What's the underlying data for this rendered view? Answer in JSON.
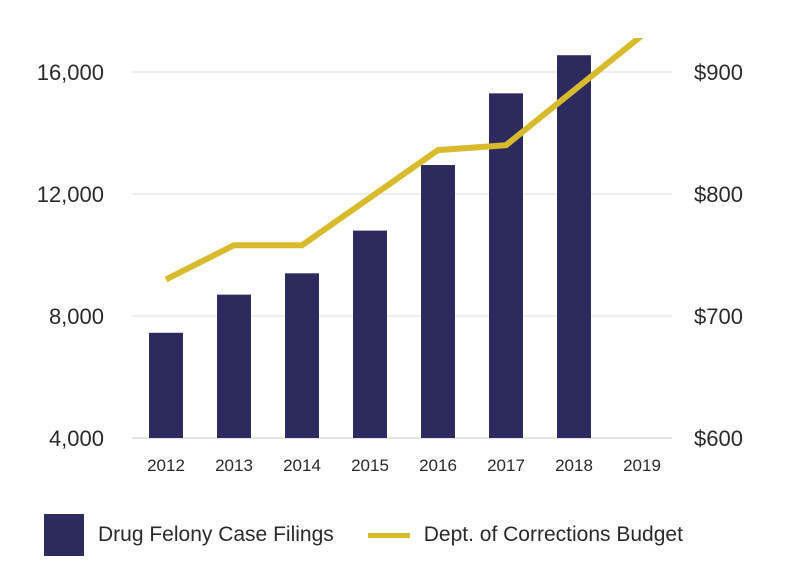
{
  "chart_data": {
    "type": "bar+line",
    "title": "",
    "categories": [
      "2012",
      "2013",
      "2014",
      "2015",
      "2016",
      "2017",
      "2018",
      "2019"
    ],
    "series": [
      {
        "name": "Drug Felony Case Filings",
        "type": "bar",
        "axis": "left",
        "color": "#2d2a5d",
        "values": [
          7450,
          8700,
          9400,
          10800,
          12950,
          15300,
          16550,
          null
        ]
      },
      {
        "name": "Dept. of Corrections Budget",
        "type": "line",
        "axis": "right",
        "color": "#d8bb2c",
        "values": [
          730,
          758,
          758,
          797,
          836,
          840,
          885,
          930
        ]
      }
    ],
    "y_left": {
      "ylim": [
        4000,
        17500
      ],
      "ticks": [
        4000,
        8000,
        12000,
        16000
      ],
      "tick_labels": [
        "4,000",
        "8,000",
        "12,000",
        "16,000"
      ]
    },
    "y_right": {
      "ylim": [
        600,
        930
      ],
      "ticks": [
        600,
        700,
        800,
        900
      ],
      "tick_labels": [
        "$600",
        "$700",
        "$800",
        "$900"
      ]
    },
    "grid": true,
    "legend_position": "bottom",
    "legend": [
      {
        "label": "Drug Felony Case Filings",
        "marker": "bar"
      },
      {
        "label": "Dept. of Corrections Budget",
        "marker": "line"
      }
    ]
  }
}
